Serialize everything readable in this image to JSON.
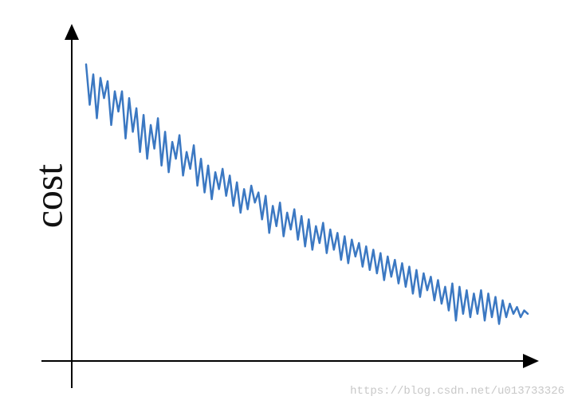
{
  "chart_data": {
    "type": "line",
    "y_label": "cost",
    "color": "#3b78c2",
    "ylim": [
      0,
      100
    ],
    "values": [
      88,
      76,
      85,
      72,
      84,
      78,
      83,
      70,
      80,
      74,
      80,
      66,
      78,
      68,
      75,
      62,
      73,
      60,
      70,
      63,
      72,
      58,
      68,
      56,
      65,
      60,
      67,
      55,
      62,
      57,
      64,
      52,
      60,
      50,
      58,
      48,
      56,
      51,
      57,
      49,
      55,
      46,
      53,
      44,
      51,
      45,
      52,
      47,
      50,
      42,
      49,
      38,
      46,
      40,
      47,
      37,
      44,
      39,
      45,
      36,
      43,
      34,
      42,
      33,
      40,
      35,
      41,
      32,
      39,
      33,
      38,
      30,
      37,
      29,
      36,
      31,
      35,
      28,
      34,
      27,
      33,
      26,
      32,
      24,
      31,
      25,
      30,
      23,
      29,
      22,
      28,
      20,
      27,
      19,
      26,
      21,
      25,
      18,
      24,
      17,
      22,
      15,
      23,
      12,
      22,
      14,
      21,
      13,
      20,
      14,
      21,
      12,
      20,
      13,
      19,
      11,
      18,
      13,
      17,
      14,
      16,
      13,
      15,
      14
    ]
  },
  "watermark": "https://blog.csdn.net/u013733326"
}
